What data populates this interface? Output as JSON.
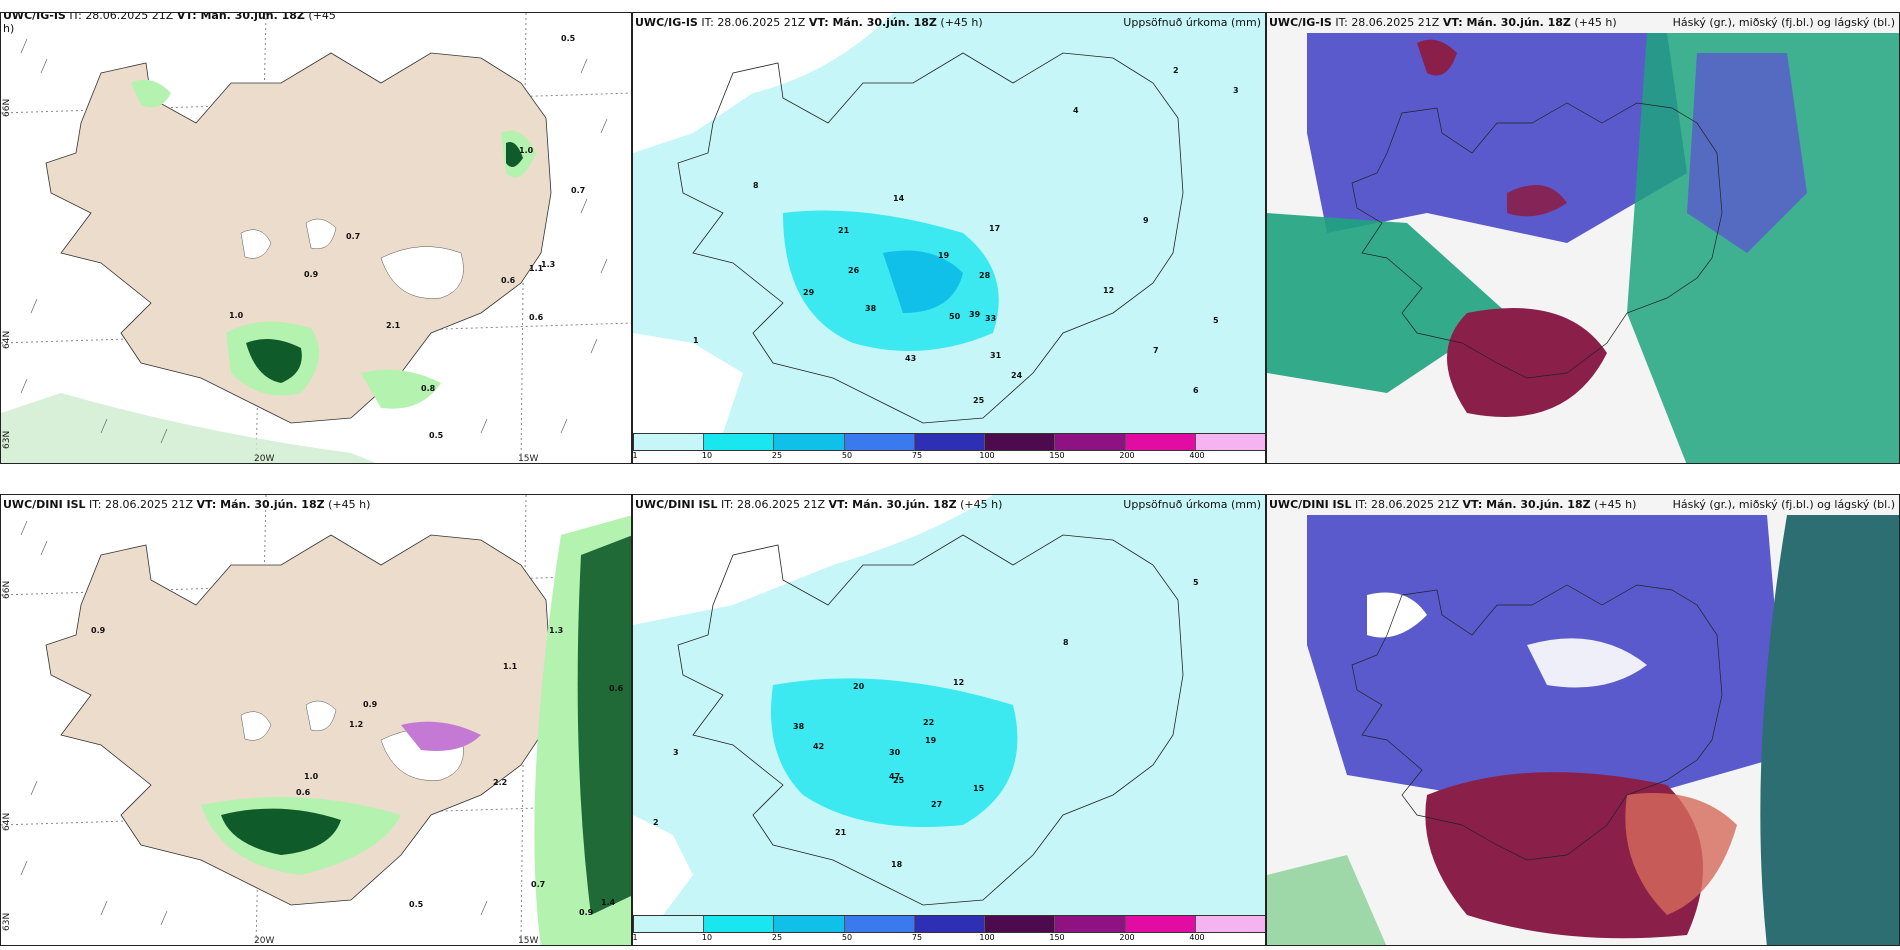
{
  "rows": [
    {
      "model": "UWC/IG-IS",
      "panel1_title_model": "UWC/IG-IS",
      "panel1_title_rest": " IT: 28.06.2025 21Z ",
      "vt_label": "VT:",
      "vt_value": " Mán. 30.jún. 18Z",
      "lead": " (+45 h)",
      "panel1_lead_wrap": "+45",
      "panel1_lead_tail": "h)",
      "p2_model": "UWC/IG-IS",
      "it": " IT: 28.06.2025 21Z ",
      "p2_right": "Uppsöfnuð úrkoma (mm)",
      "p3_right": "Háský (gr.), miðský (fj.bl.) og lágský (bl.)"
    },
    {
      "model": "UWC/DINI ISL",
      "p2_model": "UWC/DINI ISL",
      "it": " IT: 28.06.2025 21Z ",
      "vt_label": "VT:",
      "vt_value": " Mán. 30.jún. 18Z",
      "lead": " (+45 h)",
      "p2_right": "Uppsöfnuð úrkoma (mm)",
      "p3_right": "Háský (gr.), miðský (fj.bl.) og lágský (bl.)"
    }
  ],
  "axis_labels": {
    "lat66": "66N",
    "lat64": "64N",
    "lat63": "63N",
    "lon20": "20W",
    "lon15": "15W"
  },
  "colorbar": {
    "ticks": [
      "1",
      "10",
      "25",
      "50",
      "75",
      "100",
      "150",
      "200",
      "400"
    ],
    "colors": [
      "#c6f6f8",
      "#19e6ee",
      "#10c0e8",
      "#3a79ee",
      "#2d2fb5",
      "#4e0a4e",
      "#8e1281",
      "#e20ca2",
      "#f5b3f0"
    ]
  },
  "row1_values": {
    "p1": [
      "0.5",
      "1.0",
      "0.7",
      "0.7",
      "0.9",
      "0.6",
      "1.1",
      "0.6",
      "1.0",
      "2.1",
      "0.8",
      "0.5",
      "1.3"
    ],
    "p2": [
      "21",
      "26",
      "29",
      "38",
      "43",
      "50",
      "39",
      "33",
      "28",
      "25",
      "24",
      "31",
      "17",
      "19",
      "14",
      "12",
      "9",
      "8",
      "7",
      "6",
      "5",
      "4",
      "3",
      "2",
      "1"
    ],
    "colors": {
      "land": "#ecdccb",
      "wind": "#cdeccd",
      "precip_light": "#b4f2b0",
      "precip_dark": "#0f5b2a"
    }
  },
  "row2_values": {
    "p1": [
      "0.9",
      "1.3",
      "1.1",
      "0.6",
      "1.2",
      "0.9",
      "1.0",
      "0.6",
      "2.2",
      "0.5",
      "0.7",
      "0.9",
      "1.4"
    ],
    "p2": [
      "38",
      "42",
      "47",
      "30",
      "25",
      "19",
      "22",
      "20",
      "27",
      "21",
      "18",
      "15",
      "12",
      "8",
      "5",
      "3",
      "2"
    ]
  },
  "clouds_colors": {
    "high": "#5a5acd",
    "mid": "#1ea37e",
    "low": "#8a1f4a",
    "clear": "#f4f4f4"
  }
}
